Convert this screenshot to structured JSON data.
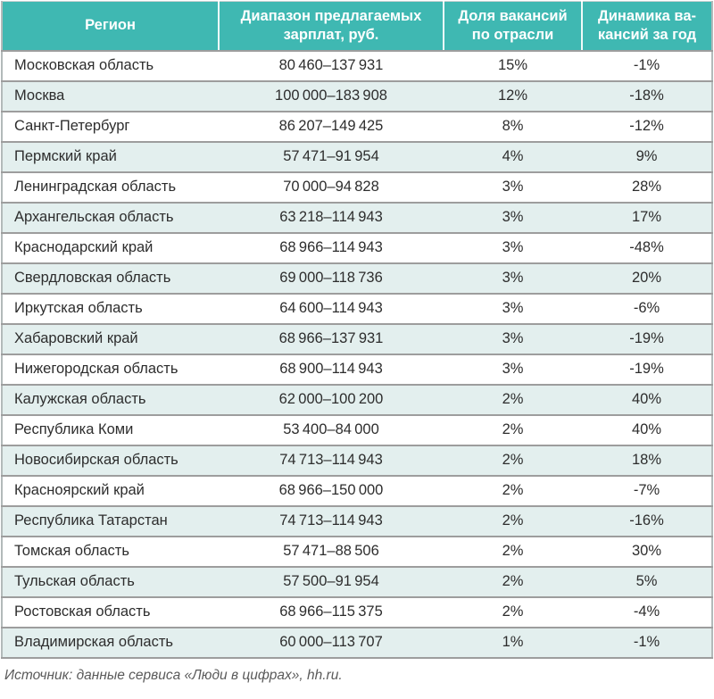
{
  "colors": {
    "header_bg": "#3fb8b2",
    "header_text": "#ffffff",
    "row_alt_bg": "#e3efee",
    "row_bg": "#ffffff",
    "border": "#9d9d9d",
    "text": "#2d2d2d",
    "footer_text": "#5a5a5a"
  },
  "table": {
    "columns": [
      {
        "label": "Регион",
        "lines": [
          "Регион"
        ]
      },
      {
        "label": "Диапазон предлагаемых зарплат, руб.",
        "lines": [
          "Диапазон предлагаемых",
          "зарплат, руб."
        ]
      },
      {
        "label": "Доля вакансий по отрасли",
        "lines": [
          "Доля вакансий",
          "по отрасли"
        ]
      },
      {
        "label": "Динамика вакансий за год",
        "lines": [
          "Динамика ва-",
          "кансий за год"
        ]
      }
    ],
    "rows": [
      {
        "region": "Московская область",
        "salary_range": "80 460–137 931",
        "share": "15%",
        "dynamics": "-1%"
      },
      {
        "region": "Москва",
        "salary_range": "100 000–183 908",
        "share": "12%",
        "dynamics": "-18%"
      },
      {
        "region": "Санкт-Петербург",
        "salary_range": "86 207–149 425",
        "share": "8%",
        "dynamics": "-12%"
      },
      {
        "region": "Пермский край",
        "salary_range": "57 471–91 954",
        "share": "4%",
        "dynamics": "9%"
      },
      {
        "region": "Ленинградская область",
        "salary_range": "70 000–94 828",
        "share": "3%",
        "dynamics": "28%"
      },
      {
        "region": "Архангельская область",
        "salary_range": "63 218–114 943",
        "share": "3%",
        "dynamics": "17%"
      },
      {
        "region": "Краснодарский край",
        "salary_range": "68 966–114 943",
        "share": "3%",
        "dynamics": "-48%"
      },
      {
        "region": "Свердловская область",
        "salary_range": "69 000–118 736",
        "share": "3%",
        "dynamics": "20%"
      },
      {
        "region": "Иркутская область",
        "salary_range": "64 600–114 943",
        "share": "3%",
        "dynamics": "-6%"
      },
      {
        "region": "Хабаровский край",
        "salary_range": "68 966–137 931",
        "share": "3%",
        "dynamics": "-19%"
      },
      {
        "region": "Нижегородская область",
        "salary_range": "68 900–114 943",
        "share": "3%",
        "dynamics": "-19%"
      },
      {
        "region": "Калужская область",
        "salary_range": "62 000–100 200",
        "share": "2%",
        "dynamics": "40%"
      },
      {
        "region": "Республика Коми",
        "salary_range": "53 400–84 000",
        "share": "2%",
        "dynamics": "40%"
      },
      {
        "region": "Новосибирская область",
        "salary_range": "74 713–114 943",
        "share": "2%",
        "dynamics": "18%"
      },
      {
        "region": "Красноярский край",
        "salary_range": "68 966–150 000",
        "share": "2%",
        "dynamics": "-7%"
      },
      {
        "region": "Республика Татарстан",
        "salary_range": "74 713–114 943",
        "share": "2%",
        "dynamics": "-16%"
      },
      {
        "region": "Томская область",
        "salary_range": "57 471–88 506",
        "share": "2%",
        "dynamics": "30%"
      },
      {
        "region": "Тульская область",
        "salary_range": "57 500–91 954",
        "share": "2%",
        "dynamics": "5%"
      },
      {
        "region": "Ростовская область",
        "salary_range": "68 966–115 375",
        "share": "2%",
        "dynamics": "-4%"
      },
      {
        "region": "Владимирская область",
        "salary_range": "60 000–113 707",
        "share": "1%",
        "dynamics": "-1%"
      }
    ]
  },
  "footer": {
    "source": "Источник: данные сервиса «Люди в цифрах», hh.ru."
  }
}
